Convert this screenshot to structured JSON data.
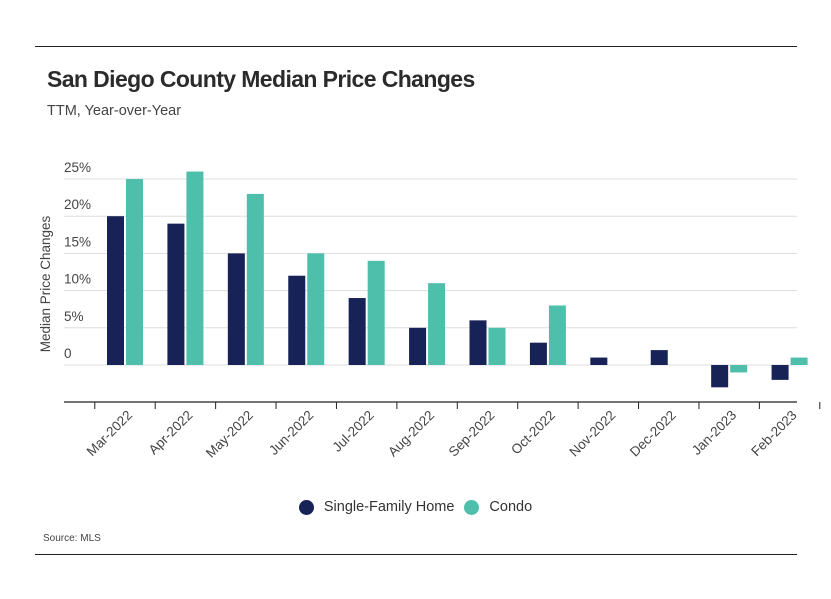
{
  "title": "San Diego County Median Price Changes",
  "subtitle": "TTM, Year-over-Year",
  "source": "Source: MLS",
  "colors": {
    "single_family": "#172256",
    "condo": "#4ebfaa",
    "grid": "#dddddd",
    "axis": "#222222"
  },
  "chart_data": {
    "type": "bar",
    "title": "San Diego County Median Price Changes",
    "subtitle": "TTM, Year-over-Year",
    "xlabel": "",
    "ylabel": "Median Price Changes",
    "ylim": [
      -5,
      25
    ],
    "y_ticks": [
      0,
      5,
      10,
      15,
      20,
      25
    ],
    "y_tick_labels": [
      "0",
      "5%",
      "10%",
      "15%",
      "20%",
      "25%"
    ],
    "grid": true,
    "legend_position": "bottom-center",
    "categories": [
      "Mar-2022",
      "Apr-2022",
      "May-2022",
      "Jun-2022",
      "Jul-2022",
      "Aug-2022",
      "Sep-2022",
      "Oct-2022",
      "Nov-2022",
      "Dec-2022",
      "Jan-2023",
      "Feb-2023"
    ],
    "series": [
      {
        "name": "Single-Family Home",
        "values": [
          20,
          19,
          15,
          12,
          9,
          5,
          6,
          3,
          1,
          2,
          -3,
          -2
        ]
      },
      {
        "name": "Condo",
        "values": [
          25,
          26,
          23,
          15,
          14,
          11,
          5,
          8,
          0,
          0,
          -1,
          1
        ]
      }
    ]
  }
}
